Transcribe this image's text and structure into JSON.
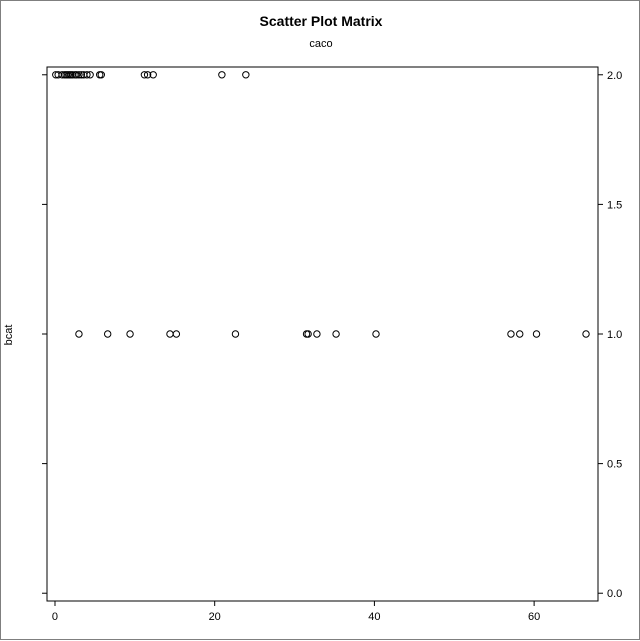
{
  "chart_data": {
    "type": "scatter",
    "title": "Scatter Plot Matrix",
    "subtitle": "caco",
    "xlabel": "",
    "ylabel": "bcat",
    "xlim": [
      -1,
      68
    ],
    "ylim": [
      -0.03,
      2.03
    ],
    "grid": false,
    "x_ticks": [
      0,
      20,
      40,
      60
    ],
    "x_tick_labels": [
      "0",
      "20",
      "40",
      "60"
    ],
    "y_ticks": [
      0.0,
      0.5,
      1.0,
      1.5,
      2.0
    ],
    "y_tick_labels": [
      "0.0",
      "0.5",
      "1.0",
      "1.5",
      "2.0"
    ],
    "series": [
      {
        "x": [
          0.1,
          0.4,
          0.9,
          1.2,
          1.4,
          1.6,
          1.8,
          2.0,
          2.2,
          2.5,
          2.7,
          3.0,
          3.3,
          3.6,
          4.0,
          4.4,
          5.6,
          5.8,
          11.2,
          11.6,
          12.3,
          20.9,
          23.9,
          3.0,
          6.6,
          9.4,
          14.4,
          15.2,
          22.6,
          31.5,
          31.7,
          32.8,
          35.2,
          40.2,
          57.1,
          58.2,
          60.3,
          66.5
        ],
        "y": [
          2,
          2,
          2,
          2,
          2,
          2,
          2,
          2,
          2,
          2,
          2,
          2,
          2,
          2,
          2,
          2,
          2,
          2,
          2,
          2,
          2,
          2,
          2,
          1,
          1,
          1,
          1,
          1,
          1,
          1,
          1,
          1,
          1,
          1,
          1,
          1,
          1,
          1
        ]
      }
    ]
  }
}
